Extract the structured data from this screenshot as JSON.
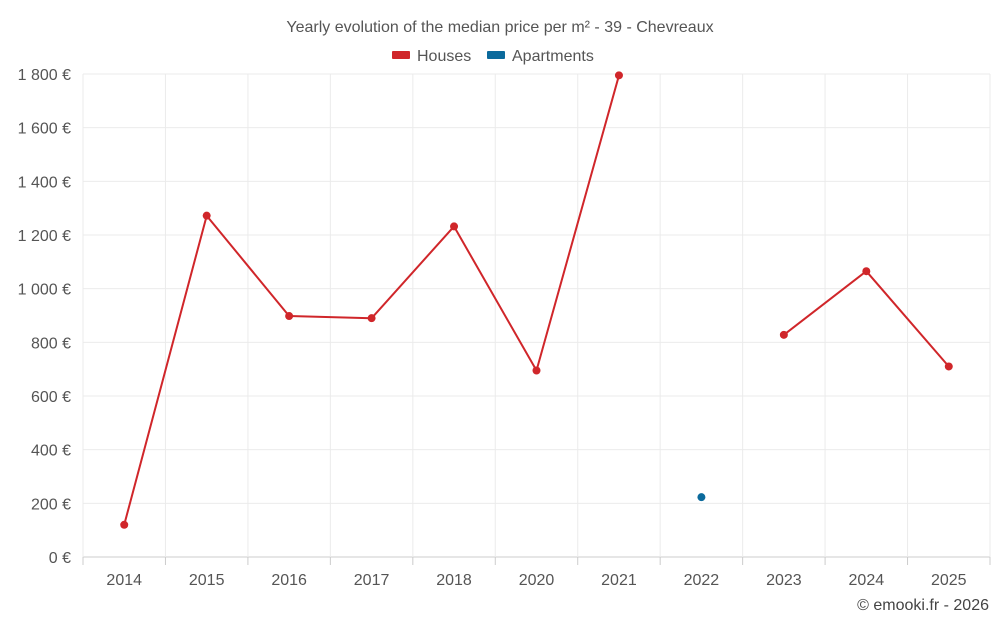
{
  "chart_data": {
    "type": "line",
    "title": "Yearly evolution of the median price per m² - 39 - Chevreaux",
    "categories": [
      "2014",
      "2015",
      "2016",
      "2017",
      "2018",
      "2020",
      "2021",
      "2022",
      "2023",
      "2024",
      "2025"
    ],
    "series": [
      {
        "name": "Houses",
        "color": "#d0262a",
        "values": [
          120,
          1272,
          898,
          890,
          1232,
          695,
          1795,
          null,
          828,
          1065,
          710
        ]
      },
      {
        "name": "Apartments",
        "color": "#0b6a9c",
        "values": [
          null,
          null,
          null,
          null,
          null,
          null,
          null,
          223,
          null,
          null,
          null
        ]
      }
    ],
    "yticks": [
      "0 €",
      "200 €",
      "400 €",
      "600 €",
      "800 €",
      "1 000 €",
      "1 200 €",
      "1 400 €",
      "1 600 €",
      "1 800 €"
    ],
    "ylim": [
      0,
      1800
    ],
    "grid": true,
    "legend_position": "top-center"
  },
  "credit": "© emooki.fr - 2026"
}
